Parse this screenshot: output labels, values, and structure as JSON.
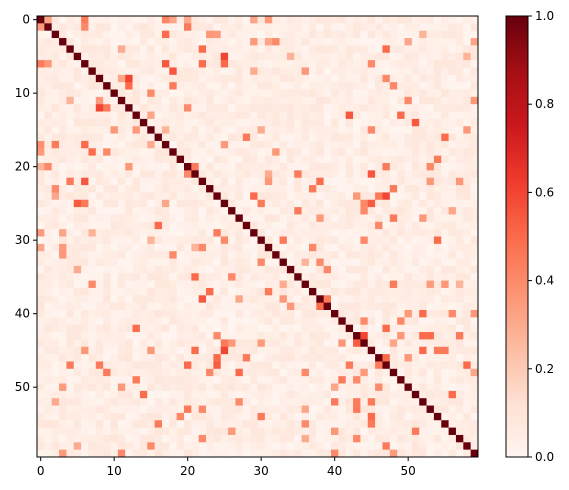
{
  "chart_data": {
    "type": "heatmap",
    "title": "",
    "xlabel": "",
    "ylabel": "",
    "size": 60,
    "xlim": [
      0,
      59
    ],
    "ylim": [
      0,
      59
    ],
    "x_ticks": [
      0,
      10,
      20,
      30,
      40,
      50
    ],
    "y_ticks": [
      0,
      10,
      20,
      30,
      40,
      50
    ],
    "x_tick_labels": [
      "0",
      "10",
      "20",
      "30",
      "40",
      "50"
    ],
    "y_tick_labels": [
      "0",
      "10",
      "20",
      "30",
      "40",
      "50"
    ],
    "colormap": "Reds",
    "colorbar": {
      "vmin": 0.0,
      "vmax": 1.0,
      "ticks": [
        0.0,
        0.2,
        0.4,
        0.6,
        0.8,
        1.0
      ],
      "tick_labels": [
        "0.0",
        "0.2",
        "0.4",
        "0.6",
        "0.8",
        "1.0"
      ]
    },
    "diagonal_value": 1.0,
    "background_level": 0.04,
    "cells": [
      [
        0,
        6,
        0.45
      ],
      [
        0,
        17,
        0.42
      ],
      [
        0,
        20,
        0.3
      ],
      [
        0,
        31,
        0.35
      ],
      [
        1,
        0,
        0.35
      ],
      [
        1,
        6,
        0.4
      ],
      [
        1,
        20,
        0.45
      ],
      [
        2,
        17,
        0.5
      ],
      [
        2,
        24,
        0.35
      ],
      [
        3,
        29,
        0.35
      ],
      [
        3,
        32,
        0.4
      ],
      [
        4,
        11,
        0.3
      ],
      [
        4,
        22,
        0.5
      ],
      [
        4,
        47,
        0.5
      ],
      [
        5,
        25,
        0.6
      ],
      [
        6,
        0,
        0.45
      ],
      [
        6,
        17,
        0.55
      ],
      [
        6,
        25,
        0.5
      ],
      [
        6,
        45,
        0.4
      ],
      [
        7,
        18,
        0.55
      ],
      [
        7,
        29,
        0.3
      ],
      [
        8,
        12,
        0.6
      ],
      [
        9,
        12,
        0.5
      ],
      [
        9,
        18,
        0.45
      ],
      [
        10,
        15,
        0.4
      ],
      [
        11,
        8,
        0.35
      ],
      [
        11,
        50,
        0.4
      ],
      [
        12,
        8,
        0.6
      ],
      [
        12,
        20,
        0.4
      ],
      [
        13,
        42,
        0.55
      ],
      [
        13,
        49,
        0.5
      ],
      [
        14,
        51,
        0.55
      ],
      [
        15,
        13,
        0.35
      ],
      [
        15,
        30,
        0.3
      ],
      [
        15,
        45,
        0.4
      ],
      [
        16,
        55,
        0.5
      ],
      [
        17,
        6,
        0.5
      ],
      [
        17,
        15,
        0.3
      ],
      [
        17,
        25,
        0.35
      ],
      [
        18,
        0,
        0.35
      ],
      [
        18,
        18,
        0.4
      ],
      [
        19,
        54,
        0.45
      ],
      [
        20,
        21,
        0.45
      ],
      [
        21,
        31,
        0.3
      ],
      [
        21,
        35,
        0.4
      ],
      [
        21,
        45,
        0.55
      ],
      [
        22,
        6,
        0.55
      ],
      [
        23,
        2,
        0.4
      ],
      [
        23,
        48,
        0.45
      ],
      [
        24,
        29,
        0.5
      ],
      [
        24,
        47,
        0.6
      ],
      [
        25,
        30,
        0.45
      ],
      [
        26,
        35,
        0.45
      ],
      [
        26,
        44,
        0.4
      ],
      [
        27,
        38,
        0.35
      ],
      [
        28,
        16,
        0.5
      ],
      [
        29,
        0,
        0.35
      ],
      [
        30,
        33,
        0.45
      ],
      [
        30,
        44,
        0.4
      ],
      [
        30,
        54,
        0.5
      ],
      [
        31,
        3,
        0.35
      ],
      [
        31,
        22,
        0.4
      ],
      [
        32,
        18,
        0.4
      ],
      [
        33,
        38,
        0.4
      ],
      [
        34,
        5,
        0.3
      ],
      [
        34,
        39,
        0.4
      ],
      [
        35,
        21,
        0.5
      ],
      [
        36,
        7,
        0.4
      ],
      [
        36,
        33,
        0.3
      ],
      [
        36,
        48,
        0.45
      ],
      [
        36,
        53,
        0.35
      ],
      [
        37,
        23,
        0.5
      ],
      [
        37,
        31,
        0.45
      ],
      [
        38,
        22,
        0.55
      ],
      [
        39,
        38,
        0.5
      ],
      [
        40,
        50,
        0.35
      ],
      [
        40,
        52,
        0.5
      ],
      [
        40,
        56,
        0.4
      ],
      [
        41,
        44,
        0.4
      ],
      [
        42,
        47,
        0.5
      ],
      [
        43,
        24,
        0.4
      ],
      [
        43,
        44,
        0.6
      ],
      [
        43,
        57,
        0.45
      ],
      [
        43,
        52,
        0.5
      ],
      [
        43,
        53,
        0.5
      ],
      [
        44,
        25,
        0.45
      ],
      [
        44,
        30,
        0.35
      ],
      [
        45,
        25,
        0.6
      ],
      [
        45,
        52,
        0.5
      ],
      [
        45,
        55,
        0.45
      ],
      [
        46,
        24,
        0.5
      ],
      [
        46,
        28,
        0.45
      ],
      [
        46,
        47,
        0.5
      ],
      [
        47,
        8,
        0.45
      ],
      [
        47,
        20,
        0.5
      ],
      [
        47,
        58,
        0.5
      ],
      [
        48,
        9,
        0.45
      ],
      [
        48,
        27,
        0.5
      ],
      [
        48,
        44,
        0.35
      ],
      [
        49,
        41,
        0.45
      ],
      [
        49,
        43,
        0.4
      ],
      [
        50,
        3,
        0.35
      ],
      [
        50,
        46,
        0.4
      ],
      [
        51,
        56,
        0.5
      ],
      [
        52,
        2,
        0.3
      ],
      [
        52,
        27,
        0.4
      ],
      [
        53,
        20,
        0.45
      ],
      [
        53,
        22,
        0.4
      ],
      [
        54,
        45,
        0.5
      ],
      [
        55,
        36,
        0.4
      ],
      [
        55,
        45,
        0.45
      ],
      [
        56,
        26,
        0.35
      ],
      [
        57,
        22,
        0.4
      ],
      [
        57,
        36,
        0.3
      ],
      [
        58,
        5,
        0.3
      ],
      [
        58,
        15,
        0.4
      ],
      [
        59,
        3,
        0.35
      ],
      [
        59,
        11,
        0.4
      ],
      [
        59,
        40,
        0.4
      ],
      [
        59,
        48,
        0.35
      ]
    ]
  }
}
